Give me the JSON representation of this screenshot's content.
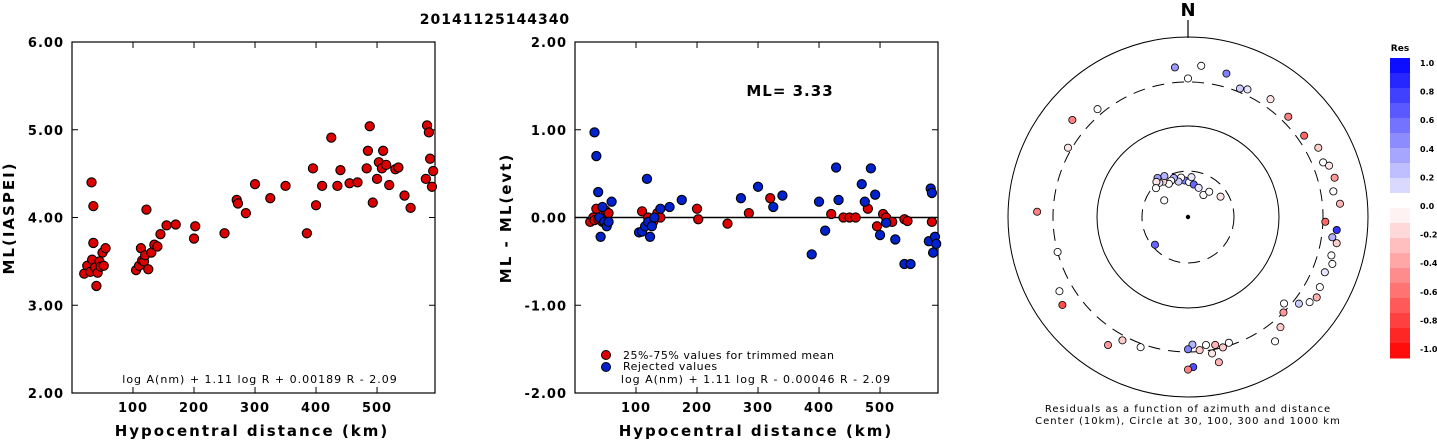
{
  "title": "20141125144340",
  "colors": {
    "trimmed": "#dd0000",
    "rejected": "#0022cc",
    "frame": "#000000"
  },
  "chart_data": [
    {
      "type": "scatter",
      "title": "",
      "xlabel": "Hypocentral distance (km)",
      "ylabel": "ML(IASPEI)",
      "xlim": [
        0,
        595
      ],
      "ylim": [
        2.0,
        6.0
      ],
      "x_ticks": [
        "100",
        "200",
        "300",
        "400",
        "500"
      ],
      "x_tick_values": [
        100,
        200,
        300,
        400,
        500
      ],
      "y_ticks": [
        "2.00",
        "3.00",
        "4.00",
        "5.00",
        "6.00"
      ],
      "y_tick_values": [
        2,
        3,
        4,
        5,
        6
      ],
      "annotation": "log A(nm) + 1.11 log R + 0.00189 R - 2.09",
      "series": [
        {
          "color": "#dd0000",
          "x": [
            20,
            25,
            30,
            32,
            33,
            35,
            35,
            38,
            40,
            42,
            45,
            47,
            50,
            52,
            55,
            105,
            110,
            113,
            115,
            118,
            120,
            122,
            125,
            130,
            135,
            140,
            145,
            155,
            170,
            200,
            202,
            250,
            270,
            272,
            285,
            300,
            325,
            350,
            385,
            395,
            400,
            410,
            425,
            435,
            440,
            455,
            468,
            483,
            485,
            488,
            493,
            500,
            503,
            508,
            510,
            515,
            520,
            530,
            535,
            545,
            555,
            580,
            582,
            585,
            587,
            590,
            592
          ],
          "y": [
            3.36,
            3.45,
            3.38,
            4.4,
            3.52,
            4.13,
            3.71,
            3.43,
            3.22,
            3.37,
            3.5,
            3.44,
            3.6,
            3.45,
            3.65,
            3.4,
            3.45,
            3.65,
            3.51,
            3.5,
            3.57,
            4.09,
            3.41,
            3.6,
            3.69,
            3.67,
            3.81,
            3.91,
            3.92,
            3.76,
            3.9,
            3.82,
            4.2,
            4.16,
            4.05,
            4.38,
            4.22,
            4.36,
            3.82,
            4.56,
            4.14,
            4.36,
            4.91,
            4.36,
            4.54,
            4.39,
            4.4,
            4.56,
            4.76,
            5.04,
            4.17,
            4.44,
            4.63,
            4.56,
            4.76,
            4.6,
            4.37,
            4.55,
            4.57,
            4.25,
            4.11,
            4.44,
            5.05,
            4.97,
            4.67,
            4.35,
            4.53
          ]
        }
      ]
    },
    {
      "type": "scatter",
      "title": "",
      "xlabel": "Hypocentral distance (km)",
      "ylabel": "ML - ML(evt)",
      "xlim": [
        0,
        595
      ],
      "ylim": [
        -2.0,
        2.0
      ],
      "x_ticks": [
        "100",
        "200",
        "300",
        "400",
        "500"
      ],
      "x_tick_values": [
        100,
        200,
        300,
        400,
        500
      ],
      "y_ticks": [
        "-2.00",
        "-1.00",
        "0.00",
        "1.00",
        "2.00"
      ],
      "y_tick_values": [
        -2,
        -1,
        0,
        1,
        2
      ],
      "ml_label": "ML= 3.33",
      "annotation": "log A(nm) + 1.11 log R - 0.00046 R - 2.09",
      "series": [
        {
          "name": "25%-75% values for trimmed mean",
          "color": "#dd0000",
          "x": [
            25,
            30,
            32,
            35,
            38,
            42,
            45,
            50,
            52,
            55,
            110,
            120,
            128,
            135,
            140,
            200,
            202,
            250,
            285,
            320,
            420,
            440,
            450,
            460,
            480,
            495,
            505,
            510,
            520,
            540,
            545,
            585
          ],
          "y": [
            -0.05,
            0.0,
            -0.03,
            0.1,
            -0.02,
            0.0,
            -0.05,
            0.08,
            -0.03,
            0.05,
            0.07,
            0.0,
            -0.05,
            0.05,
            0.0,
            0.1,
            -0.02,
            -0.07,
            0.05,
            0.22,
            0.04,
            0.0,
            0.0,
            0.0,
            0.1,
            -0.1,
            0.04,
            0.0,
            -0.05,
            -0.02,
            -0.04,
            -0.05
          ]
        },
        {
          "name": "Rejected values",
          "color": "#0022cc",
          "x": [
            32,
            35,
            38,
            40,
            42,
            45,
            48,
            52,
            55,
            60,
            105,
            110,
            115,
            118,
            120,
            123,
            126,
            130,
            140,
            155,
            175,
            272,
            300,
            325,
            340,
            388,
            400,
            410,
            428,
            432,
            470,
            475,
            485,
            492,
            500,
            510,
            525,
            540,
            550,
            580,
            583,
            585,
            587,
            590,
            592
          ],
          "y": [
            0.97,
            0.7,
            0.29,
            0.0,
            -0.22,
            0.12,
            -0.05,
            -0.1,
            -0.05,
            0.18,
            -0.17,
            -0.16,
            -0.1,
            0.44,
            -0.05,
            -0.22,
            -0.1,
            0.0,
            0.1,
            0.12,
            0.2,
            0.22,
            0.35,
            0.12,
            0.25,
            -0.42,
            0.18,
            -0.15,
            0.57,
            0.2,
            0.38,
            0.18,
            0.56,
            0.26,
            -0.2,
            -0.06,
            -0.25,
            -0.53,
            -0.53,
            -0.27,
            0.33,
            0.28,
            -0.4,
            -0.22,
            -0.3
          ]
        }
      ]
    },
    {
      "type": "scatter",
      "title": "",
      "north_label": "N",
      "caption_line1": "Residuals as a function of azimuth and distance",
      "caption_line2": "Center (10km), Circle at 30, 100, 300 and 1000 km",
      "rings_km": [
        30,
        100,
        300,
        1000
      ],
      "colorbar_title": "Res",
      "colorbar_ticks": [
        "1.0",
        "0.8",
        "0.6",
        "0.4",
        "0.2",
        "0.0",
        "-0.2",
        "-0.4",
        "-0.6",
        "-0.8",
        "-1.0"
      ],
      "points": [
        {
          "az": 355,
          "dist": 24,
          "res": 0.5
        },
        {
          "az": 2,
          "dist": 23,
          "res": 0.0
        },
        {
          "az": 10,
          "dist": 22,
          "res": 0.6
        },
        {
          "az": 20,
          "dist": 21,
          "res": 0.1
        },
        {
          "az": 5,
          "dist": 26,
          "res": 0.1
        },
        {
          "az": 350,
          "dist": 26,
          "res": 0.0
        },
        {
          "az": 345,
          "dist": 24,
          "res": 0.2
        },
        {
          "az": 340,
          "dist": 27,
          "res": 0.3
        },
        {
          "az": 335,
          "dist": 26,
          "res": 0.0
        },
        {
          "az": 330,
          "dist": 25,
          "res": 0.0
        },
        {
          "az": 325,
          "dist": 28,
          "res": -0.2
        },
        {
          "az": 320,
          "dist": 29,
          "res": 0.1
        },
        {
          "az": 330,
          "dist": 31,
          "res": 0.3
        },
        {
          "az": 322,
          "dist": 33,
          "res": 0.4
        },
        {
          "az": 318,
          "dist": 31,
          "res": -0.1
        },
        {
          "az": 312,
          "dist": 28,
          "res": 0.0
        },
        {
          "az": 305,
          "dist": 20,
          "res": 0.0
        },
        {
          "az": 35,
          "dist": 19,
          "res": 0.0
        },
        {
          "az": 40,
          "dist": 22,
          "res": 0.0
        },
        {
          "az": 58,
          "dist": 25,
          "res": -0.1
        },
        {
          "az": 230,
          "dist": 28,
          "res": 0.6
        },
        {
          "az": 0,
          "dist": 330,
          "res": 0.0
        },
        {
          "az": 355,
          "dist": 450,
          "res": 0.4
        },
        {
          "az": 15,
          "dist": 430,
          "res": 0.5
        },
        {
          "az": 22,
          "dist": 330,
          "res": 0.2
        },
        {
          "az": 25,
          "dist": 350,
          "res": 0.1
        },
        {
          "az": 35,
          "dist": 380,
          "res": -0.1
        },
        {
          "az": 45,
          "dist": 360,
          "res": -0.5
        },
        {
          "az": 55,
          "dist": 360,
          "res": -0.6
        },
        {
          "az": 62,
          "dist": 420,
          "res": -0.2
        },
        {
          "az": 68,
          "dist": 400,
          "res": 0.0
        },
        {
          "az": 70,
          "dist": 450,
          "res": -0.1
        },
        {
          "az": 75,
          "dist": 470,
          "res": -0.4
        },
        {
          "az": 80,
          "dist": 420,
          "res": 0.0
        },
        {
          "az": 85,
          "dist": 480,
          "res": -0.3
        },
        {
          "az": 95,
          "dist": 440,
          "res": 0.8
        },
        {
          "az": 98,
          "dist": 400,
          "res": 0.3
        },
        {
          "az": 100,
          "dist": 460,
          "res": -0.2
        },
        {
          "az": 105,
          "dist": 430,
          "res": 0.0
        },
        {
          "az": 108,
          "dist": 470,
          "res": 0.0
        },
        {
          "az": 112,
          "dist": 420,
          "res": 0.1
        },
        {
          "az": 118,
          "dist": 440,
          "res": 0.0
        },
        {
          "az": 122,
          "dist": 470,
          "res": -0.3
        },
        {
          "az": 125,
          "dist": 430,
          "res": 0.0
        },
        {
          "az": 128,
          "dist": 350,
          "res": 0.2
        },
        {
          "az": 132,
          "dist": 260,
          "res": 0.0
        },
        {
          "az": 135,
          "dist": 300,
          "res": -0.4
        },
        {
          "az": 140,
          "dist": 380,
          "res": -0.2
        },
        {
          "az": 145,
          "dist": 470,
          "res": 0.0
        },
        {
          "az": 178,
          "dist": 250,
          "res": 0.3
        },
        {
          "az": 180,
          "dist": 280,
          "res": 0.5
        },
        {
          "az": 175,
          "dist": 290,
          "res": -0.2
        },
        {
          "az": 172,
          "dist": 260,
          "res": 0.0
        },
        {
          "az": 168,
          "dist": 270,
          "res": -0.3
        },
        {
          "az": 165,
          "dist": 300,
          "res": -0.2
        },
        {
          "az": 162,
          "dist": 280,
          "res": 0.0
        },
        {
          "az": 170,
          "dist": 330,
          "res": -0.1
        },
        {
          "az": 178,
          "dist": 450,
          "res": 0.7
        },
        {
          "az": 180,
          "dist": 480,
          "res": -0.5
        },
        {
          "az": 168,
          "dist": 430,
          "res": -0.3
        },
        {
          "az": 200,
          "dist": 330,
          "res": 0.0
        },
        {
          "az": 208,
          "dist": 340,
          "res": -0.2
        },
        {
          "az": 212,
          "dist": 460,
          "res": -0.4
        },
        {
          "az": 235,
          "dist": 490,
          "res": -0.7
        },
        {
          "az": 240,
          "dist": 430,
          "res": 0.0
        },
        {
          "az": 255,
          "dist": 300,
          "res": 0.0
        },
        {
          "az": 272,
          "dist": 460,
          "res": -0.5
        },
        {
          "az": 300,
          "dist": 330,
          "res": -0.1
        },
        {
          "az": 310,
          "dist": 460,
          "res": -0.5
        },
        {
          "az": 320,
          "dist": 350,
          "res": 0.0
        },
        {
          "az": 92,
          "dist": 320,
          "res": -0.6
        },
        {
          "az": 5,
          "dist": 470,
          "res": 0.0
        }
      ]
    }
  ]
}
